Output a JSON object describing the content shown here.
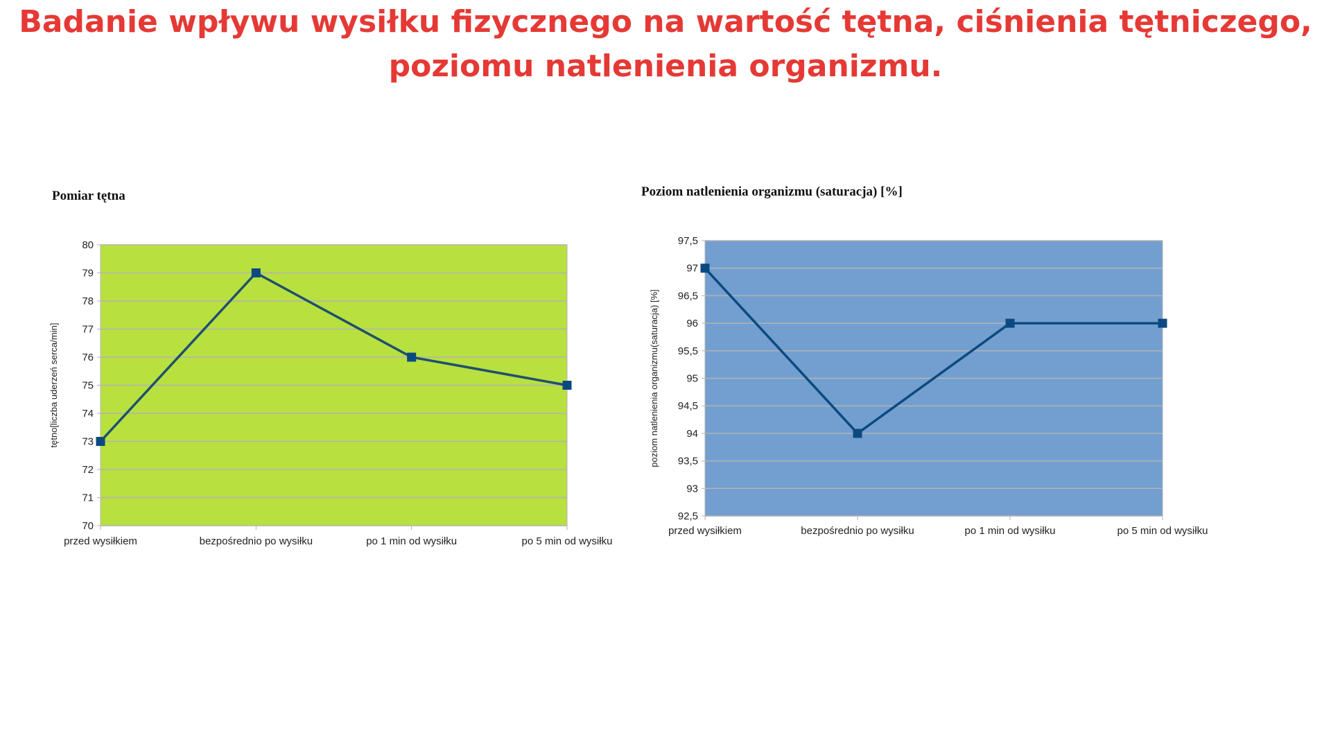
{
  "page": {
    "title_line1": "Badanie wpływu wysiłku fizycznego na wartość tętna, ciśnienia tętniczego,",
    "title_line2": "poziomu natlenienia organizmu."
  },
  "chart_data": [
    {
      "type": "line",
      "title": "Pomiar tętna",
      "ylabel": "tętno[liczba uderzeń serca/min]",
      "xlabel": "",
      "categories": [
        "przed wysiłkiem",
        "bezpośrednio po wysiłku",
        "po 1 min od wysiłku",
        "po 5 min od wysiłku"
      ],
      "series": [
        {
          "values": [
            73,
            79,
            76,
            75
          ]
        }
      ],
      "ylim": [
        70,
        80
      ],
      "yticks": [
        "70",
        "71",
        "72",
        "73",
        "74",
        "75",
        "76",
        "77",
        "78",
        "79",
        "80"
      ],
      "grid": true,
      "plot_background": "#b8e03f",
      "line_color": "#1f4f6e",
      "marker_color": "#0b4a80"
    },
    {
      "type": "line",
      "title": "Poziom natlenienia organizmu (saturacja) [%]",
      "ylabel": "poziom natlenienia organizmu(saturacja) [%]",
      "xlabel": "",
      "categories": [
        "przed wysiłkiem",
        "bezpośrednio po wysiłku",
        "po 1 min od wysiłku",
        "po 5 min od wysiłku"
      ],
      "series": [
        {
          "values": [
            97,
            94,
            96,
            96
          ]
        }
      ],
      "ylim": [
        92.5,
        97.5
      ],
      "yticks": [
        "92,5",
        "93",
        "93,5",
        "94",
        "94,5",
        "95",
        "95,5",
        "96",
        "96,5",
        "97",
        "97,5"
      ],
      "grid": true,
      "plot_background": "#729fcf",
      "line_color": "#0b4a80",
      "marker_color": "#0b4a80"
    }
  ]
}
